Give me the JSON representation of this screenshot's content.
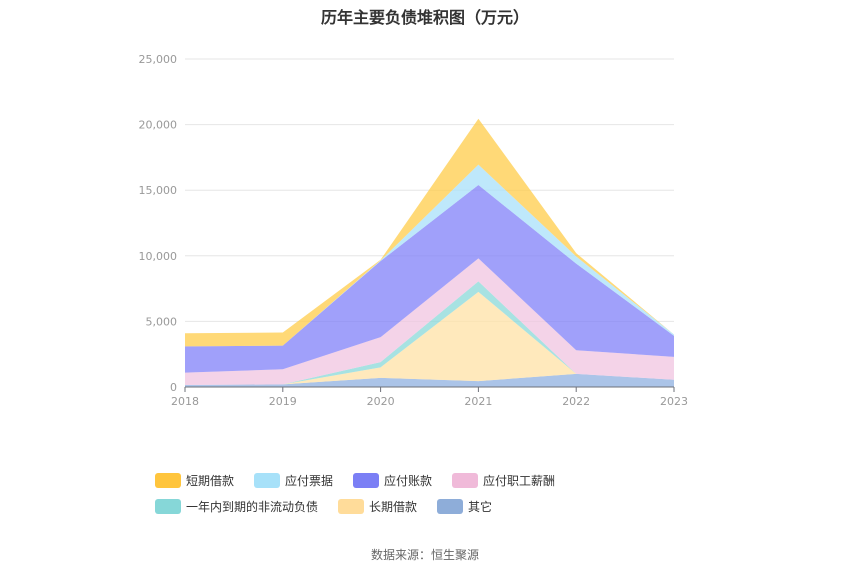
{
  "source_label": "数据来源：恒生聚源",
  "chart_data": {
    "type": "area",
    "stacked": true,
    "title": "历年主要负债堆积图（万元）",
    "xlabel": "",
    "ylabel": "",
    "x": [
      "2018",
      "2019",
      "2020",
      "2021",
      "2022",
      "2023"
    ],
    "ylim": [
      0,
      25000
    ],
    "yticks": [
      0,
      5000,
      10000,
      15000,
      20000,
      25000
    ],
    "ytick_labels": [
      "0",
      "5,000",
      "10,000",
      "15,000",
      "20,000",
      "25,000"
    ],
    "grid": true,
    "legend_position": "bottom",
    "series": [
      {
        "name": "其它",
        "color": "#8fb0e0",
        "values": [
          150,
          200,
          700,
          450,
          1000,
          550
        ]
      },
      {
        "name": "长期借款",
        "color": "#ffe1a6",
        "values": [
          0,
          0,
          800,
          6800,
          0,
          0
        ]
      },
      {
        "name": "一年内到期的非流动负债",
        "color": "#8ad8d8",
        "values": [
          0,
          0,
          400,
          800,
          0,
          0
        ]
      },
      {
        "name": "应付职工薪酬",
        "color": "#f0c4e0",
        "values": [
          950,
          1150,
          1900,
          1750,
          1800,
          1750
        ]
      },
      {
        "name": "应付账款",
        "color": "#8080f8",
        "values": [
          2000,
          1800,
          5800,
          5600,
          6600,
          1600
        ]
      },
      {
        "name": "应付票据",
        "color": "#a8e0fa",
        "values": [
          0,
          0,
          50,
          1550,
          550,
          100
        ]
      },
      {
        "name": "短期借款",
        "color": "#ffcc4a",
        "values": [
          1000,
          1000,
          50,
          3500,
          250,
          0
        ]
      }
    ],
    "legend": [
      {
        "name": "短期借款",
        "color": "#ffc53d"
      },
      {
        "name": "应付票据",
        "color": "#a7e1f9"
      },
      {
        "name": "应付账款",
        "color": "#7b7ff5"
      },
      {
        "name": "应付职工薪酬",
        "color": "#f0bad9"
      },
      {
        "name": "一年内到期的非流动负债",
        "color": "#86d7d8"
      },
      {
        "name": "长期借款",
        "color": "#ffdc9a"
      },
      {
        "name": "其它",
        "color": "#8eadd9"
      }
    ]
  }
}
